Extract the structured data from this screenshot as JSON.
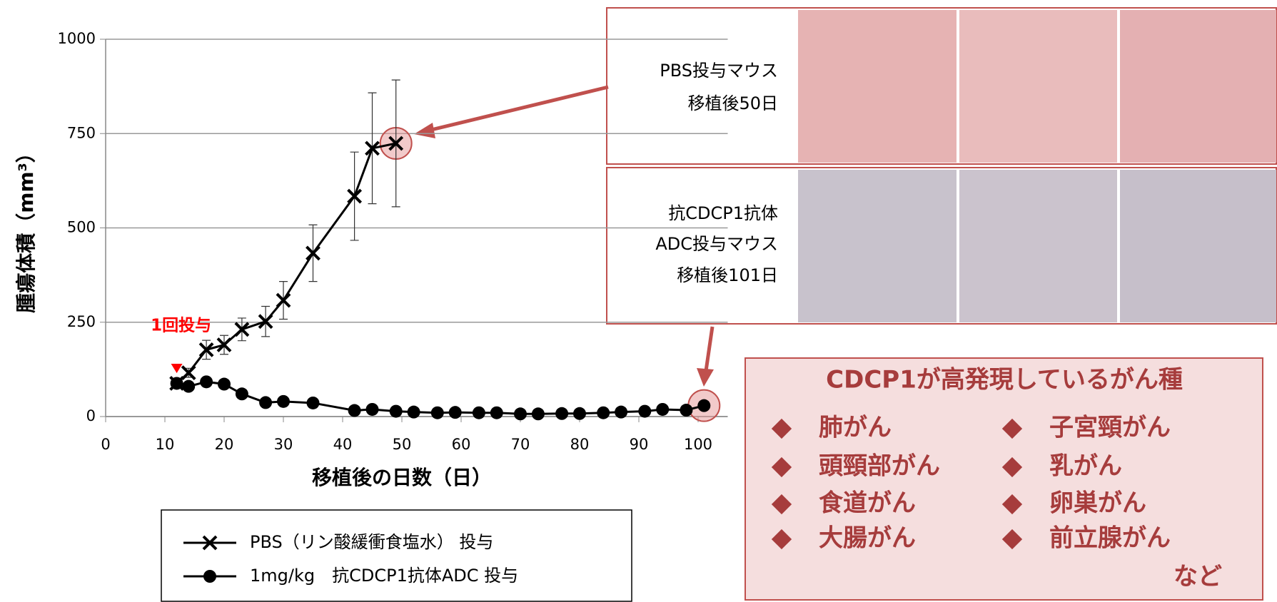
{
  "chart_data": {
    "type": "line",
    "x_label": "移植後の日数（日）",
    "y_label": "腫瘍体積（mm³）",
    "annotation": "1回投与",
    "xlim": [
      0,
      105
    ],
    "xticks": [
      0,
      10,
      20,
      30,
      40,
      50,
      60,
      70,
      80,
      90,
      100
    ],
    "ylim": [
      0,
      1000
    ],
    "yticks": [
      0,
      250,
      500,
      750,
      1000
    ],
    "grid": true,
    "series": [
      {
        "name": "PBS（リン酸緩衝食塩水） 投与",
        "color": "#000000",
        "marker": "x",
        "x": [
          12,
          14,
          17,
          20,
          23,
          27,
          30,
          35,
          42,
          45,
          49
        ],
        "values": [
          88,
          116,
          177,
          190,
          231,
          252,
          308,
          433,
          584,
          711,
          724
        ],
        "errors": [
          8,
          12,
          25,
          25,
          30,
          40,
          50,
          75,
          117,
          147,
          168
        ]
      },
      {
        "name": "1mg/kg　抗CDCP1抗体ADC 投与",
        "color": "#000000",
        "marker": "circle",
        "x": [
          12,
          14,
          17,
          20,
          23,
          27,
          30,
          35,
          42,
          45,
          49,
          52,
          56,
          59,
          63,
          66,
          70,
          73,
          77,
          80,
          84,
          87,
          91,
          94,
          98,
          101
        ],
        "values": [
          88,
          80,
          92,
          86,
          60,
          37,
          40,
          36,
          16,
          19,
          14,
          12,
          10,
          11,
          10,
          10,
          7,
          7,
          8,
          8,
          10,
          12,
          14,
          19,
          17,
          29
        ]
      }
    ]
  },
  "panels": [
    {
      "lines": [
        "PBS投与マウス",
        "移植後50日"
      ]
    },
    {
      "lines": [
        "抗CDCP1抗体",
        "ADC投与マウス",
        "移植後101日"
      ]
    }
  ],
  "cancer_box": {
    "title": "CDCP1が高発現しているがん種",
    "left_column": [
      "肺がん",
      "頭頸部がん",
      "食道がん",
      "大腸がん"
    ],
    "right_column": [
      "子宮頸がん",
      "乳がん",
      "卵巣がん",
      "前立腺がん"
    ],
    "note": "など"
  }
}
